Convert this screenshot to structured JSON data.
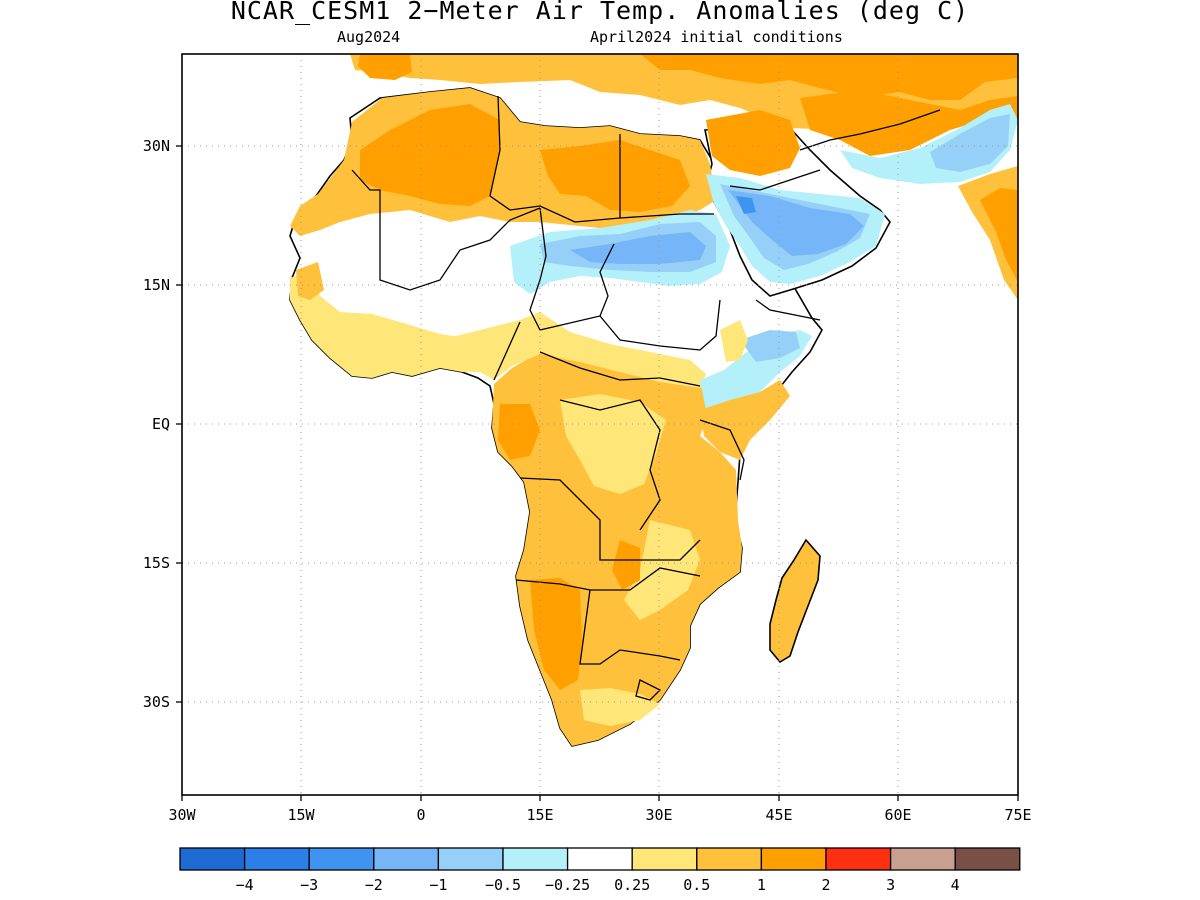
{
  "title": "NCAR_CESM1 2−Meter Air Temp. Anomalies (deg C)",
  "subtitle_left": "Aug2024",
  "subtitle_right": "April2024 initial conditions",
  "map": {
    "projection": "lat-lon",
    "lon_range": [
      -30,
      75
    ],
    "lat_range": [
      -40,
      40
    ],
    "x_ticks": [
      "30W",
      "15W",
      "0",
      "15E",
      "30E",
      "45E",
      "60E",
      "75E"
    ],
    "y_ticks": [
      "30N",
      "15N",
      "EQ",
      "15S",
      "30S"
    ],
    "grid": "dotted",
    "field": "2-meter air temperature anomaly"
  },
  "colorbar": {
    "colors": [
      "#1d6ad2",
      "#2c7ee8",
      "#3e94f0",
      "#76b6f8",
      "#96d0f8",
      "#b4f0fa",
      "#ffffff",
      "#ffe678",
      "#ffc03c",
      "#ffa000",
      "#ff3010",
      "#c8a090",
      "#785046"
    ],
    "labels": [
      "−4",
      "−3",
      "−2",
      "−1",
      "−0.5",
      "−0.25",
      "0.25",
      "0.5",
      "1",
      "2",
      "3",
      "4"
    ]
  }
}
